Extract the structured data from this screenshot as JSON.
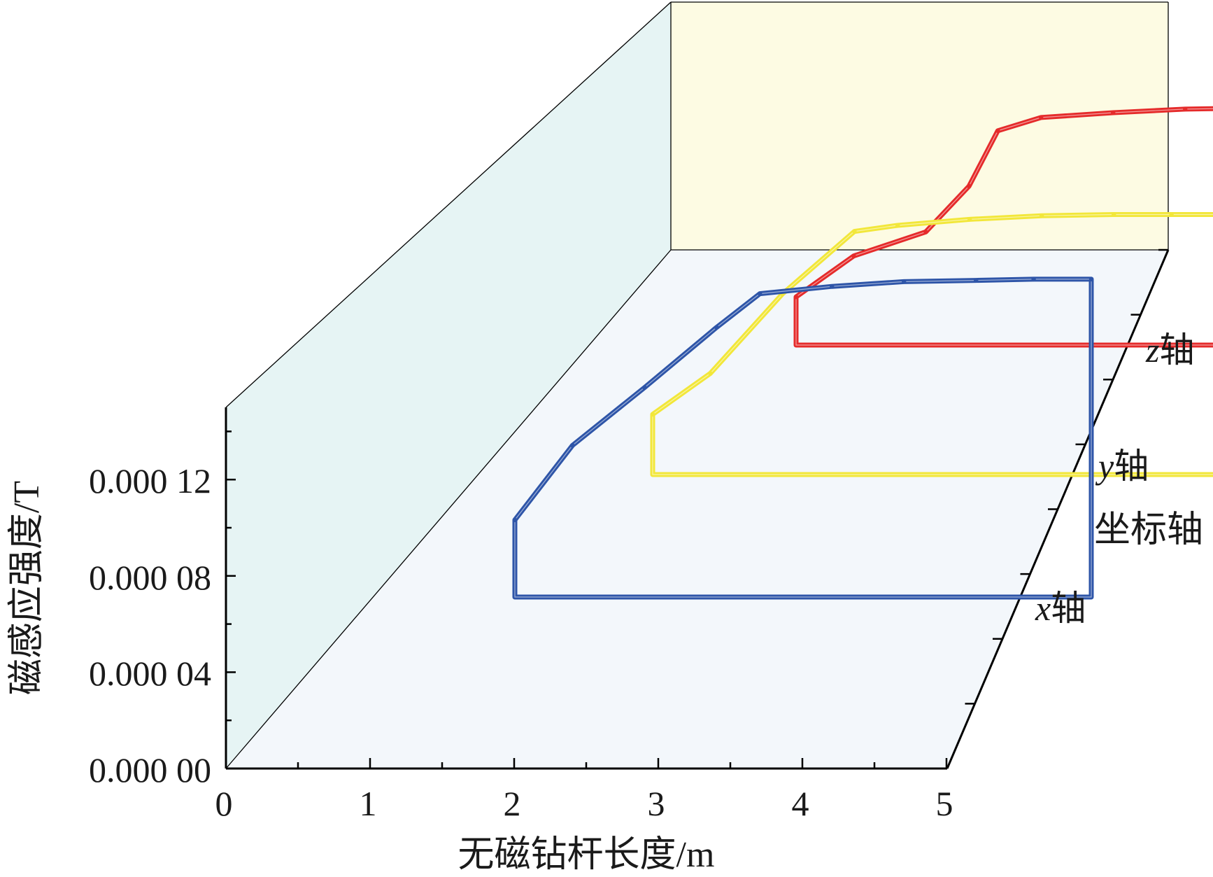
{
  "chart_data": {
    "type": "line",
    "subtype": "3d-waterfall",
    "title": "",
    "xlabel": "无磁钻杆长度/m",
    "ylabel": "磁感应强度/T",
    "zlabel": "坐标轴",
    "xlim": [
      0,
      5
    ],
    "ylim": [
      0,
      0.00015
    ],
    "x_ticks": [
      {
        "value": 0,
        "label": "0"
      },
      {
        "value": 1,
        "label": "1"
      },
      {
        "value": 2,
        "label": "2"
      },
      {
        "value": 3,
        "label": "3"
      },
      {
        "value": 4,
        "label": "4"
      },
      {
        "value": 5,
        "label": "5"
      }
    ],
    "y_ticks": [
      {
        "value": 0,
        "label": "0.000 00"
      },
      {
        "value": 4e-05,
        "label": "0.000 04"
      },
      {
        "value": 8e-05,
        "label": "0.000 08"
      },
      {
        "value": 0.00012,
        "label": "0.000 12"
      }
    ],
    "z_categories": [
      {
        "sym": "x",
        "suffix": "轴"
      },
      {
        "sym": "y",
        "suffix": "轴"
      },
      {
        "sym": "z",
        "suffix": "轴"
      }
    ],
    "grid": false,
    "series": [
      {
        "name": "x轴",
        "color": "#2e55a8",
        "x": [
          1.0,
          1.4,
          1.9,
          2.4,
          2.7,
          3.2,
          3.7,
          4.2,
          4.6,
          5.0
        ],
        "y": [
          3.2e-05,
          6.3e-05,
          8.7e-05,
          0.000112,
          0.000126,
          0.000129,
          0.000131,
          0.0001315,
          0.000132,
          0.000132
        ]
      },
      {
        "name": "y轴",
        "color": "#f2e73a",
        "x": [
          1.0,
          1.4,
          1.9,
          2.4,
          2.7,
          3.2,
          3.7,
          4.2,
          4.6,
          5.0
        ],
        "y": [
          2.5e-05,
          4.2e-05,
          7.5e-05,
          0.000101,
          0.0001035,
          0.000106,
          0.0001075,
          0.000108,
          0.000108,
          0.000108
        ]
      },
      {
        "name": "z轴",
        "color": "#e52b2b",
        "x": [
          1.0,
          1.4,
          1.9,
          2.2,
          2.4,
          2.7,
          3.2,
          3.7,
          4.2,
          4.6,
          5.0
        ],
        "y": [
          2e-05,
          3.7e-05,
          4.7e-05,
          6.6e-05,
          8.9e-05,
          9.45e-05,
          9.65e-05,
          9.8e-05,
          9.85e-05,
          9.85e-05,
          9.85e-05
        ]
      }
    ]
  }
}
